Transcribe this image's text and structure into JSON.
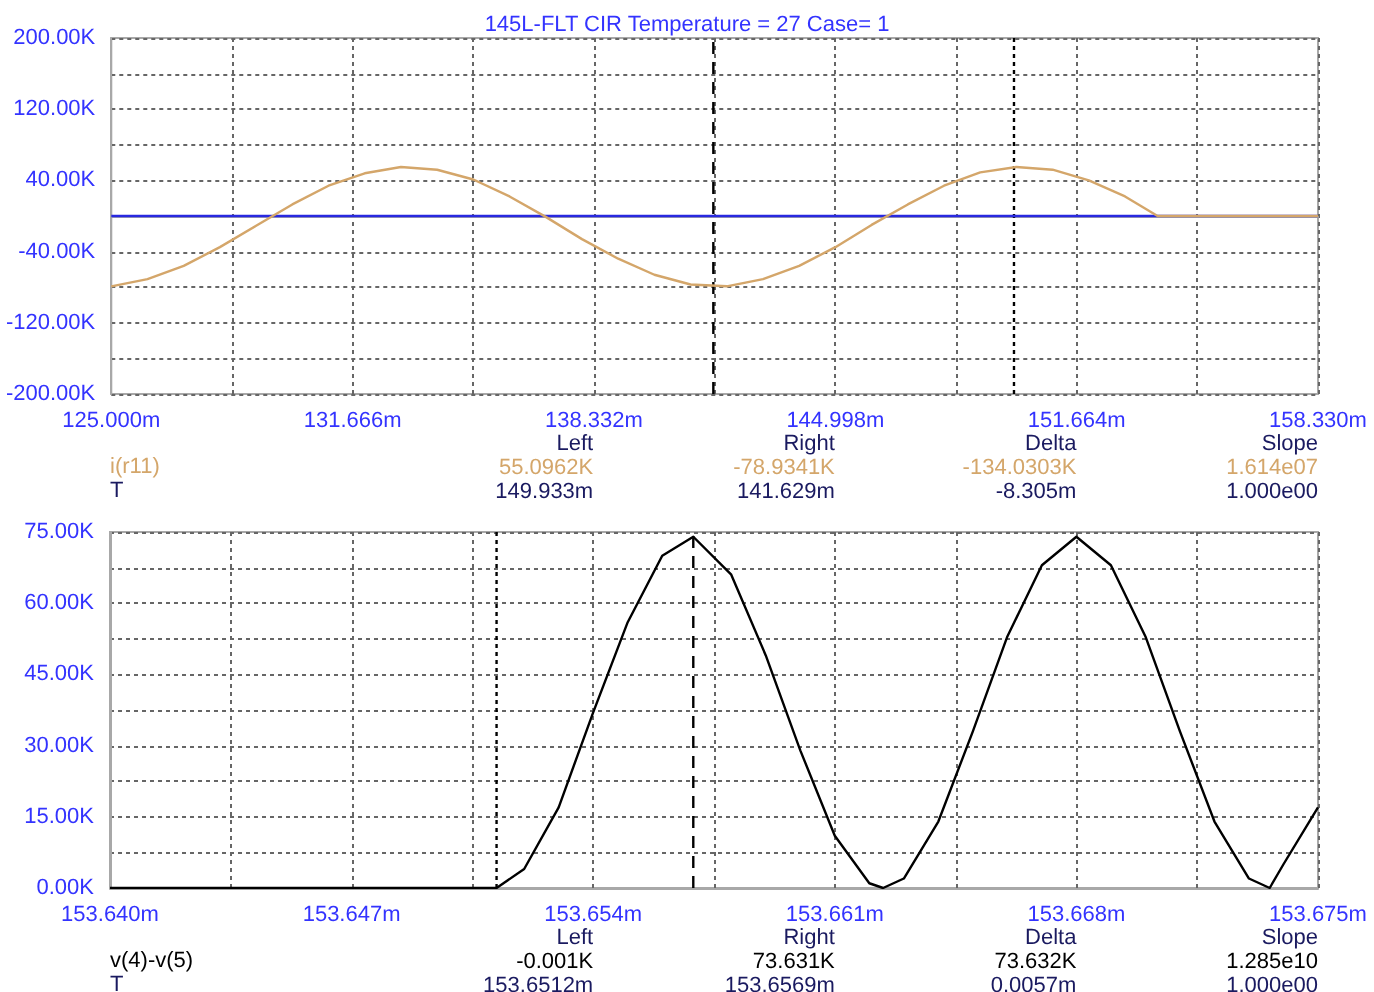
{
  "chart_data": [
    {
      "type": "line",
      "title": "145L-FLT CIR Temperature = 27 Case= 1",
      "xlabel": "T",
      "grid": true,
      "legend": false,
      "xlim": [
        125,
        158.33
      ],
      "xticks": [
        {
          "value": 125,
          "label": "125.000m"
        },
        {
          "value": 128.333,
          "label": null
        },
        {
          "value": 131.666,
          "label": "131.666m"
        },
        {
          "value": 134.999,
          "label": null
        },
        {
          "value": 138.332,
          "label": "138.332m"
        },
        {
          "value": 141.665,
          "label": null
        },
        {
          "value": 144.998,
          "label": "144.998m"
        },
        {
          "value": 148.331,
          "label": null
        },
        {
          "value": 151.664,
          "label": "151.664m"
        },
        {
          "value": 154.997,
          "label": null
        },
        {
          "value": 158.33,
          "label": "158.330m"
        }
      ],
      "ylim": [
        -200,
        200
      ],
      "yticks": [
        {
          "value": -200,
          "label": "-200.00K"
        },
        {
          "value": -160,
          "label": null
        },
        {
          "value": -120,
          "label": "-120.00K"
        },
        {
          "value": -80,
          "label": null
        },
        {
          "value": -40,
          "label": "-40.00K"
        },
        {
          "value": 0,
          "label": null
        },
        {
          "value": 40,
          "label": "40.00K"
        },
        {
          "value": 80,
          "label": null
        },
        {
          "value": 120,
          "label": "120.00K"
        },
        {
          "value": 160,
          "label": null
        },
        {
          "value": 200,
          "label": "200.00K"
        }
      ],
      "series": [
        {
          "name": "i(r11)",
          "color": "#d4a66a",
          "x": [
            125,
            126,
            127,
            128,
            129,
            130,
            131,
            132,
            133,
            134,
            135,
            136,
            137,
            138,
            139,
            140,
            141,
            142,
            143,
            144,
            145,
            146,
            147,
            148,
            149,
            150,
            151,
            152,
            153,
            153.9,
            158.33
          ],
          "values": [
            -79,
            -71,
            -56,
            -35,
            -11,
            13,
            34,
            48,
            55,
            52,
            41,
            22,
            -1,
            -26,
            -48,
            -66,
            -77,
            -79,
            -71,
            -56,
            -35,
            -10,
            13,
            34,
            49,
            55,
            52,
            40,
            22,
            0,
            0
          ]
        },
        {
          "color": "#2828e0",
          "x": [
            125,
            158.33
          ],
          "values": [
            0,
            0
          ]
        }
      ],
      "ref_lines": [
        {
          "axis": "x",
          "value": 149.933,
          "color": "#000000",
          "line_style": "dotted"
        },
        {
          "axis": "x",
          "value": 141.629,
          "color": "#000000",
          "line_style": "dashed"
        }
      ],
      "annotations": [
        "Left",
        "Right",
        "Delta",
        "Slope",
        "55.0962K",
        "-78.9341K",
        "-134.0303K",
        "1.614e07",
        "149.933m",
        "141.629m",
        "-8.305m",
        "1.000e00"
      ]
    },
    {
      "type": "line",
      "xlabel": "T",
      "grid": true,
      "legend": false,
      "xlim": [
        153.64,
        153.675
      ],
      "xticks": [
        {
          "value": 153.64,
          "label": "153.640m"
        },
        {
          "value": 153.6435,
          "label": null
        },
        {
          "value": 153.647,
          "label": "153.647m"
        },
        {
          "value": 153.6505,
          "label": null
        },
        {
          "value": 153.654,
          "label": "153.654m"
        },
        {
          "value": 153.6575,
          "label": null
        },
        {
          "value": 153.661,
          "label": "153.661m"
        },
        {
          "value": 153.6645,
          "label": null
        },
        {
          "value": 153.668,
          "label": "153.668m"
        },
        {
          "value": 153.6715,
          "label": null
        },
        {
          "value": 153.675,
          "label": "153.675m"
        }
      ],
      "ylim": [
        0,
        75
      ],
      "yticks": [
        {
          "value": 0,
          "label": "0.00K"
        },
        {
          "value": 7.5,
          "label": null
        },
        {
          "value": 15,
          "label": "15.00K"
        },
        {
          "value": 22.5,
          "label": null
        },
        {
          "value": 30,
          "label": "30.00K"
        },
        {
          "value": 37.5,
          "label": null
        },
        {
          "value": 45,
          "label": "45.00K"
        },
        {
          "value": 52.5,
          "label": null
        },
        {
          "value": 60,
          "label": "60.00K"
        },
        {
          "value": 67.5,
          "label": null
        },
        {
          "value": 75,
          "label": "75.00K"
        }
      ],
      "series": [
        {
          "name": "v(4)-v(5)",
          "color": "#000000",
          "x": [
            153.64,
            153.6512,
            153.652,
            153.653,
            153.654,
            153.655,
            153.656,
            153.6569,
            153.658,
            153.659,
            153.66,
            153.661,
            153.662,
            153.6624,
            153.663,
            153.664,
            153.665,
            153.666,
            153.667,
            153.668,
            153.669,
            153.67,
            153.671,
            153.672,
            153.673,
            153.6736,
            153.674,
            153.675
          ],
          "values": [
            0,
            0,
            4,
            17,
            37,
            56,
            70,
            74,
            66,
            49,
            29,
            11,
            1,
            0,
            2,
            14,
            33,
            53,
            68,
            74,
            68,
            53,
            33,
            14,
            2,
            0,
            5,
            17
          ]
        }
      ],
      "ref_lines": [
        {
          "axis": "x",
          "value": 153.6512,
          "color": "#000000",
          "line_style": "dotted"
        },
        {
          "axis": "x",
          "value": 153.6569,
          "color": "#000000",
          "line_style": "dashed"
        }
      ],
      "annotations": [
        "Left",
        "Right",
        "Delta",
        "Slope",
        "-0.001K",
        "73.631K",
        "73.632K",
        "1.285e10",
        "153.6512m",
        "153.6569m",
        "0.0057m",
        "1.000e00"
      ]
    }
  ]
}
